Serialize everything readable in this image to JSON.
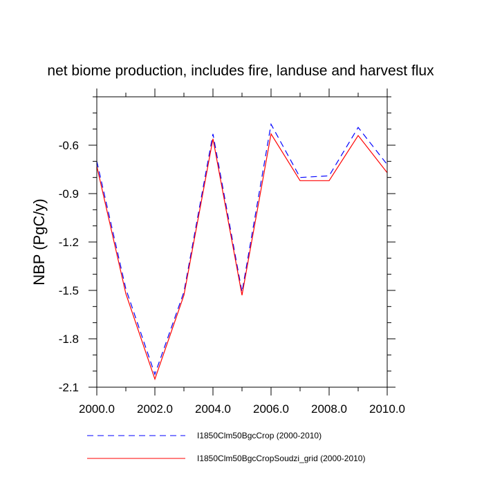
{
  "chart_data": {
    "type": "line",
    "title": "net biome production, includes fire, landuse and harvest flux",
    "xlabel": "",
    "ylabel": "NBP  (PgC/y)",
    "xlim": [
      2000,
      2010
    ],
    "ylim": [
      -2.1,
      -0.3
    ],
    "x_ticks": [
      2000,
      2002,
      2004,
      2006,
      2008,
      2010
    ],
    "x_tick_labels": [
      "2000.0",
      "2002.0",
      "2004.0",
      "2006.0",
      "2008.0",
      "2010.0"
    ],
    "y_ticks": [
      -2.1,
      -1.8,
      -1.5,
      -1.2,
      -0.9,
      -0.6
    ],
    "y_tick_labels": [
      "-2.1",
      "-1.8",
      "-1.5",
      "-1.2",
      "-0.9",
      "-0.6"
    ],
    "grid": false,
    "legend_position": "bottom",
    "x": [
      2000,
      2001,
      2002,
      2003,
      2004,
      2005,
      2006,
      2007,
      2008,
      2009,
      2010
    ],
    "series": [
      {
        "name": "I1850Clm50BgcCrop (2000-2010)",
        "color": "#0000ff",
        "dash": "dashed",
        "values": [
          -0.7,
          -1.49,
          -2.02,
          -1.51,
          -0.53,
          -1.51,
          -0.47,
          -0.8,
          -0.79,
          -0.49,
          -0.72
        ]
      },
      {
        "name": "I1850Clm50BgcCropSoudzi_grid (2000-2010)",
        "color": "#ff0000",
        "dash": "solid",
        "values": [
          -0.73,
          -1.52,
          -2.05,
          -1.53,
          -0.56,
          -1.53,
          -0.53,
          -0.82,
          -0.82,
          -0.54,
          -0.77
        ]
      }
    ]
  }
}
